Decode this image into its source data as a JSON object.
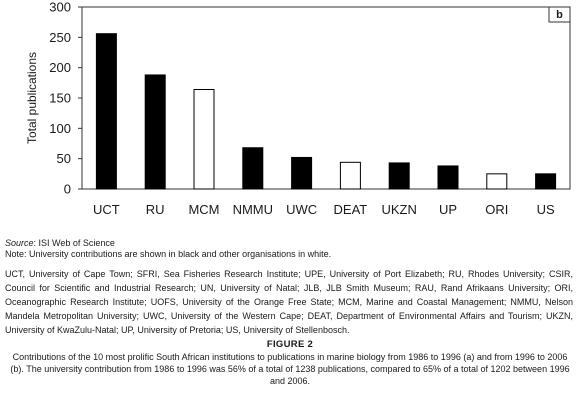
{
  "chart_data": {
    "type": "bar",
    "panel_label": "b",
    "ylabel": "Total publications",
    "xlabel": "",
    "ylim": [
      0,
      300
    ],
    "yticks": [
      0,
      50,
      100,
      150,
      200,
      250,
      300
    ],
    "grid": false,
    "legend": "none",
    "categories": [
      "UCT",
      "RU",
      "MCM",
      "NMMU",
      "UWC",
      "DEAT",
      "UKZN",
      "UP",
      "ORI",
      "US"
    ],
    "values": [
      256,
      188,
      164,
      68,
      52,
      44,
      43,
      38,
      25,
      25
    ],
    "bar_kind": [
      "university",
      "university",
      "other",
      "university",
      "university",
      "other",
      "university",
      "university",
      "other",
      "university"
    ],
    "colors": {
      "university": "#000000",
      "other": "#ffffff",
      "axis": "#333333"
    }
  },
  "notes": {
    "source_label": "Source",
    "source_text": ": ISI Web of Science",
    "note_text": "Note: University contributions are shown in black and other organisations in white."
  },
  "abbreviations": "UCT, University of Cape Town; SFRI, Sea Fisheries Research Institute; UPE, University of Port Elizabeth; RU, Rhodes University; CSIR, Council for Scientific and Industrial Research; UN, University of Natal; JLB, JLB Smith Museum; RAU, Rand Afrikaans University; ORI, Oceanographic Research Institute; UOFS, University of the Orange Free State; MCM, Marine and Coastal Management; NMMU, Nelson Mandela Metropolitan University; UWC, University of the Western Cape; DEAT, Department of Environmental Affairs and Tourism; UKZN, University of KwaZulu-Natal; UP, University of Pretoria; US, University of Stellenbosch.",
  "figure": {
    "title": "FIGURE 2",
    "caption": "Contributions of the 10 most prolific South African institutions to publications in marine biology from 1986 to 1996 (a) and from 1996 to 2006 (b). The university contribution from 1986 to 1996 was 56% of a total of 1238 publications, compared to 65% of a total of 1202 between 1996 and 2006."
  }
}
